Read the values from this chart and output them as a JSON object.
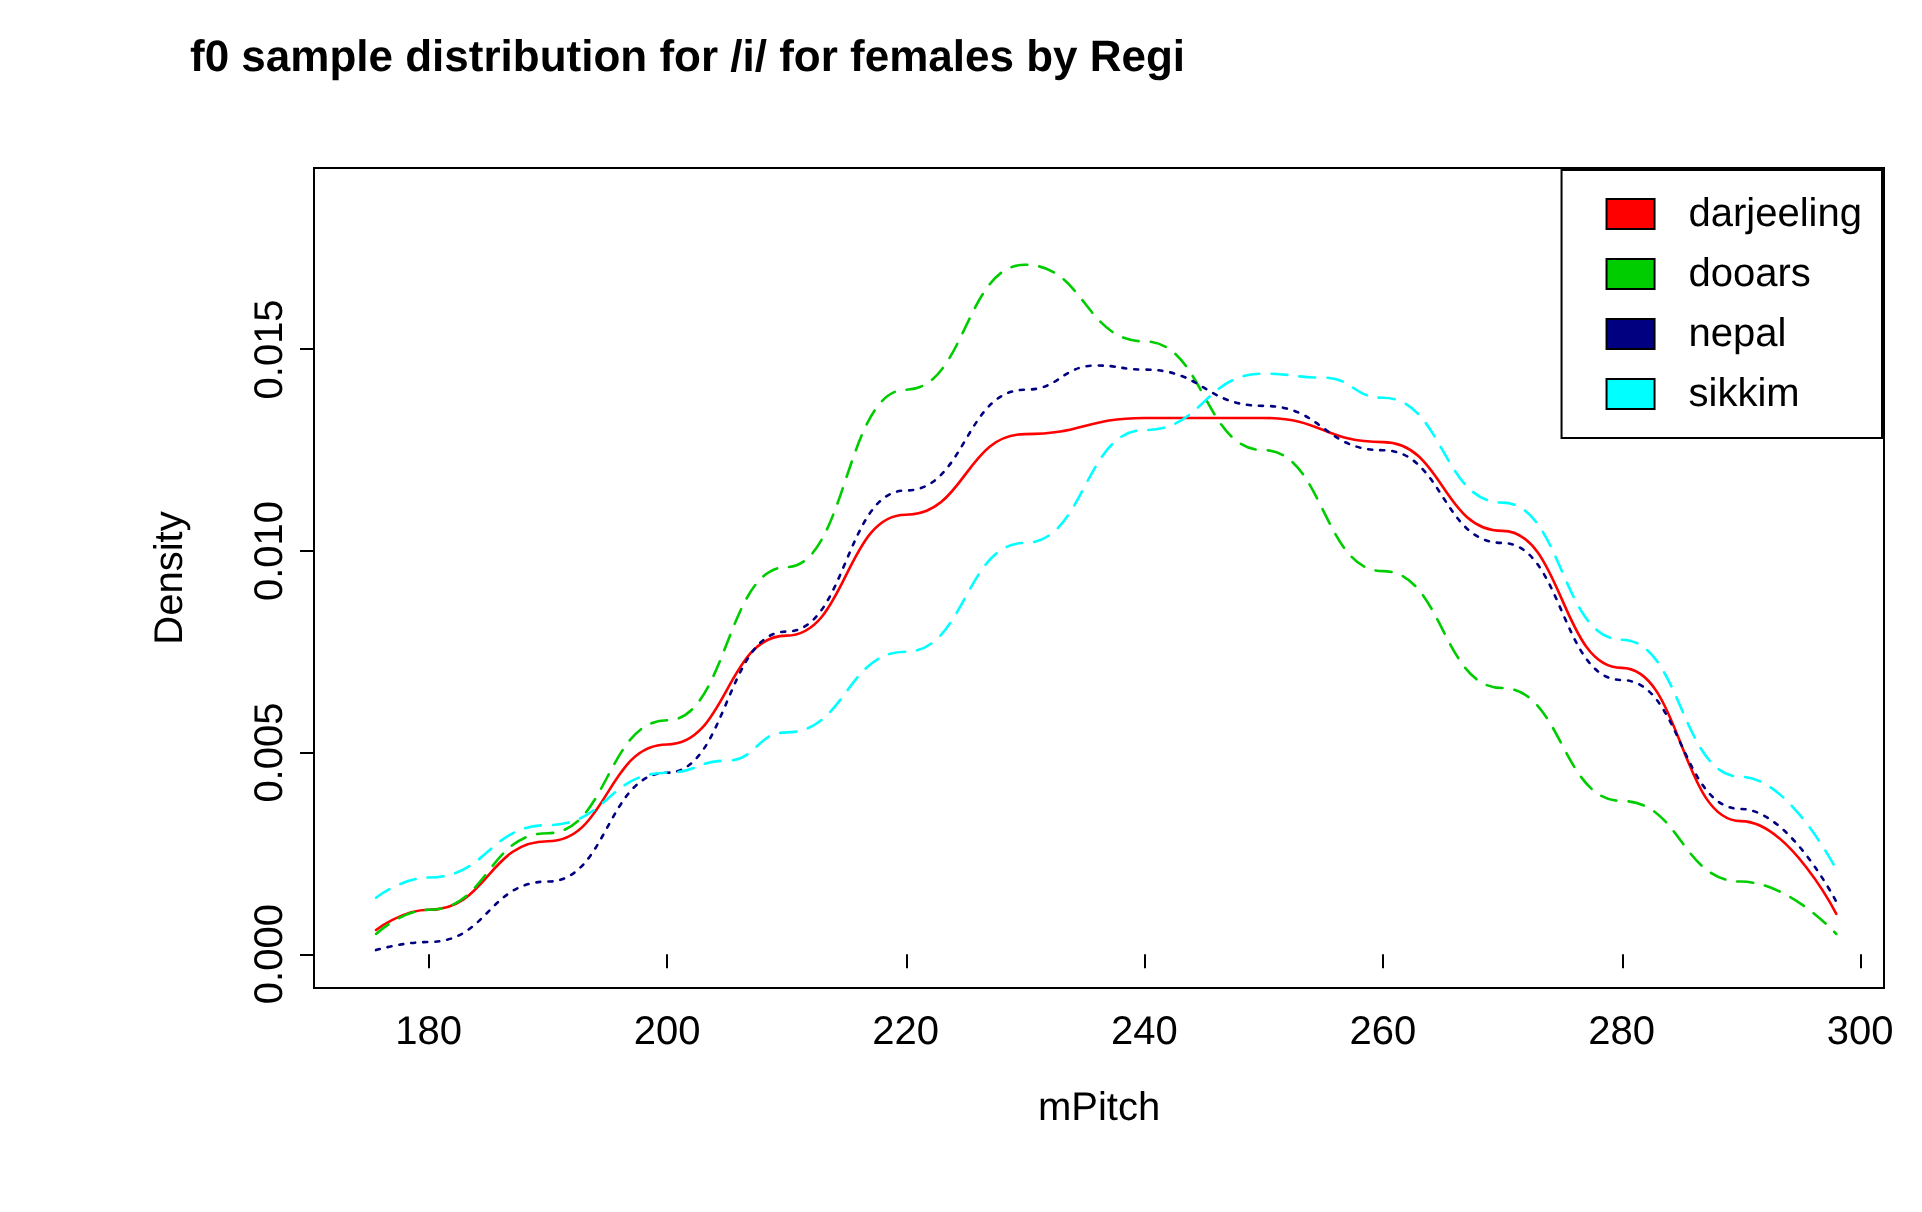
{
  "chart_data": {
    "type": "line",
    "title": "f0 sample distribution for /i/ for females by Regi",
    "xlabel": "mPitch",
    "ylabel": "Density",
    "xlim": [
      170.4,
      302
    ],
    "xticks": [
      180,
      200,
      220,
      240,
      260,
      280,
      300
    ],
    "ylim": [
      -0.00084,
      0.0195
    ],
    "yticks": [
      {
        "value": 0,
        "label": "0.000"
      },
      {
        "value": 0.005,
        "label": "0.005"
      },
      {
        "value": 0.01,
        "label": "0.010"
      },
      {
        "value": 0.015,
        "label": "0.015"
      }
    ],
    "grid": false,
    "legend": "top right",
    "marker": "none",
    "series": [
      {
        "name": "darjeeling",
        "color": "#ff0000",
        "line_style": "solid",
        "x": [
          175.6,
          180,
          190,
          200,
          210,
          220,
          230,
          240,
          250,
          260,
          270,
          280,
          290,
          298
        ],
        "values": [
          0.0006,
          0.0011,
          0.0028,
          0.0052,
          0.0079,
          0.0109,
          0.0129,
          0.0133,
          0.0133,
          0.0127,
          0.0105,
          0.0071,
          0.0033,
          0.001
        ]
      },
      {
        "name": "dooars",
        "color": "#00cd00",
        "line_style": "dashed",
        "x": [
          175.6,
          180,
          190,
          200,
          210,
          220,
          230,
          240,
          250,
          260,
          270,
          280,
          290,
          298
        ],
        "values": [
          0.0005,
          0.0011,
          0.003,
          0.0058,
          0.0096,
          0.014,
          0.0171,
          0.0152,
          0.0125,
          0.0095,
          0.0066,
          0.0038,
          0.0018,
          0.0005
        ]
      },
      {
        "name": "nepal",
        "color": "#000080",
        "line_style": "dotted",
        "x": [
          175.6,
          180,
          190,
          200,
          210,
          220,
          230,
          236,
          240,
          250,
          260,
          270,
          280,
          290,
          298
        ],
        "values": [
          0.0001,
          0.0003,
          0.0018,
          0.0045,
          0.008,
          0.0115,
          0.014,
          0.0146,
          0.0145,
          0.0136,
          0.0125,
          0.0102,
          0.0068,
          0.0036,
          0.0013
        ]
      },
      {
        "name": "sikkim",
        "color": "#00ffff",
        "line_style": "dashed",
        "x": [
          175.6,
          180,
          190,
          200,
          205,
          210,
          220,
          230,
          240,
          250,
          255,
          260,
          270,
          280,
          290,
          298
        ],
        "values": [
          0.0014,
          0.0019,
          0.0032,
          0.0045,
          0.0048,
          0.0055,
          0.0075,
          0.0102,
          0.013,
          0.0144,
          0.0143,
          0.0138,
          0.0112,
          0.0078,
          0.0044,
          0.0021
        ]
      }
    ]
  }
}
